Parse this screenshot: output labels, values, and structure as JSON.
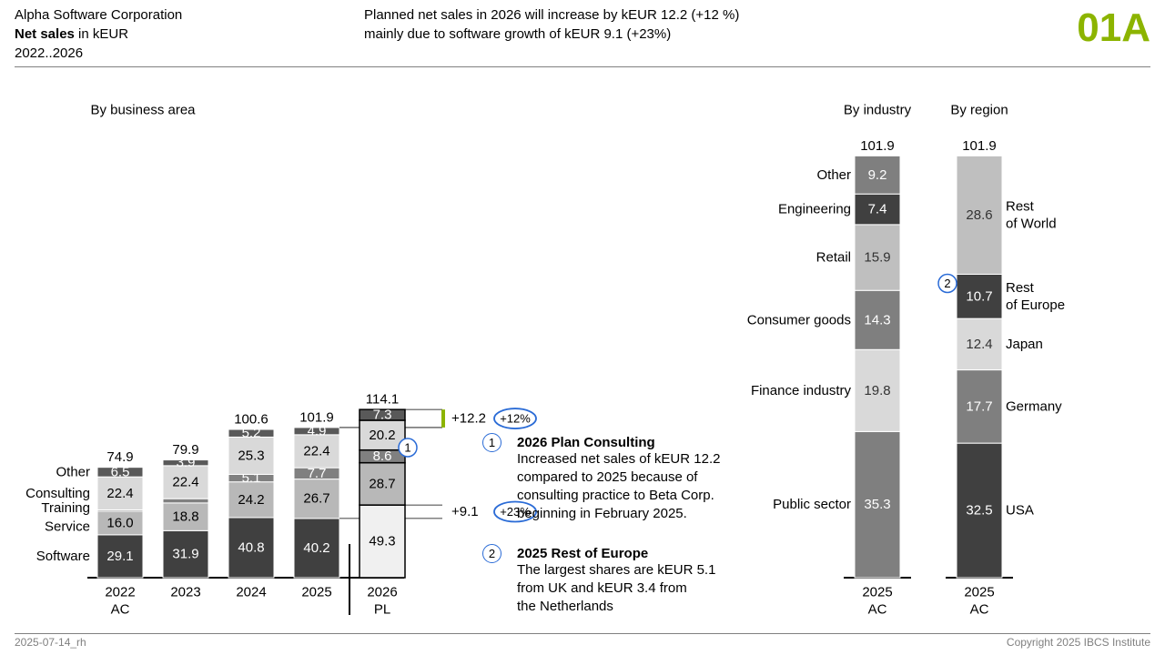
{
  "header": {
    "company": "Alpha Software Corporation",
    "measure_bold": "Net sales",
    "measure_unit": " in kEUR",
    "period": "2022..2026",
    "message_line1": "Planned net sales in 2026 will increase by kEUR 12.2 (+12 %)",
    "message_line2": "mainly due to software growth of kEUR 9.1 (+23%)",
    "page_code": "01A"
  },
  "footer": {
    "left": "2025-07-14_rh",
    "right": "Copyright 2025 IBCS Institute"
  },
  "colors": {
    "accent": "#8cb400",
    "software": "#404040",
    "service": "#b8b8b8",
    "training": "#808080",
    "consulting": "#d9d9d9",
    "other": "#595959",
    "plan_fill": "#f0f0f0",
    "highlight": "#2a6bd6"
  },
  "notes": [
    {
      "number": "1",
      "title": "2026 Plan Consulting",
      "lines": [
        "Increased net sales of kEUR 12.2",
        "compared to 2025 because of",
        "consulting practice to Beta Corp.",
        "beginning in February 2025."
      ]
    },
    {
      "number": "2",
      "title": "2025 Rest of Europe",
      "lines": [
        "The largest shares are kEUR 5.1",
        "from UK and kEUR 3.4 from",
        "the Netherlands"
      ]
    }
  ],
  "chart_data": [
    {
      "type": "bar",
      "stacked": true,
      "subtitle": "By business area",
      "categories": [
        [
          "2022",
          "AC"
        ],
        [
          "2023"
        ],
        [
          "2024"
        ],
        [
          "2025"
        ],
        [
          "2026",
          "PL"
        ]
      ],
      "scenario": [
        "AC",
        "AC",
        "AC",
        "AC",
        "PL"
      ],
      "series": [
        {
          "name": "Software",
          "values": [
            29.1,
            31.9,
            40.8,
            40.2,
            49.3
          ]
        },
        {
          "name": "Service",
          "values": [
            16.0,
            18.8,
            24.2,
            26.7,
            28.7
          ]
        },
        {
          "name": "Training",
          "values": [
            0.9,
            2.9,
            5.1,
            7.7,
            8.6
          ]
        },
        {
          "name": "Consulting",
          "values": [
            22.4,
            22.4,
            25.3,
            22.4,
            20.2
          ]
        },
        {
          "name": "Other",
          "values": [
            6.5,
            3.9,
            5.2,
            4.9,
            7.3
          ]
        }
      ],
      "value_labels": [
        [
          "29.1",
          "31.9",
          "40.8",
          "40.2",
          "49.3"
        ],
        [
          "16.0",
          "18.8",
          "24.2",
          "26.7",
          "28.7"
        ],
        [
          "",
          "",
          "5.1",
          "7.7",
          "8.6"
        ],
        [
          "22.4",
          "22.4",
          "25.3",
          "22.4",
          "20.2"
        ],
        [
          "6.5",
          "3.9",
          "5.2",
          "4.9",
          "7.3"
        ]
      ],
      "totals": [
        "74.9",
        "79.9",
        "100.6",
        "101.9",
        "114.1"
      ],
      "deltas": [
        {
          "label": "+12.2",
          "percent": "+12%"
        },
        {
          "label": "+9.1",
          "percent": "+23%"
        }
      ]
    },
    {
      "type": "bar",
      "stacked": true,
      "subtitle": "By industry",
      "categories": [
        [
          "2025",
          "AC"
        ]
      ],
      "total": "101.9",
      "segments": [
        {
          "name": "Public sector",
          "value": 35.3
        },
        {
          "name": "Finance industry",
          "value": 19.8
        },
        {
          "name": "Consumer goods",
          "value": 14.3
        },
        {
          "name": "Retail",
          "value": 15.9
        },
        {
          "name": "Engineering",
          "value": 7.4
        },
        {
          "name": "Other",
          "value": 9.2
        }
      ]
    },
    {
      "type": "bar",
      "stacked": true,
      "subtitle": "By region",
      "categories": [
        [
          "2025",
          "AC"
        ]
      ],
      "total": "101.9",
      "segments": [
        {
          "name": "USA",
          "value": 32.5
        },
        {
          "name": "Germany",
          "value": 17.7
        },
        {
          "name": "Japan",
          "value": 12.4
        },
        {
          "name": "Rest of Europe",
          "value": 10.7,
          "marker": "2"
        },
        {
          "name": "Rest of World",
          "value": 28.6
        }
      ]
    }
  ]
}
